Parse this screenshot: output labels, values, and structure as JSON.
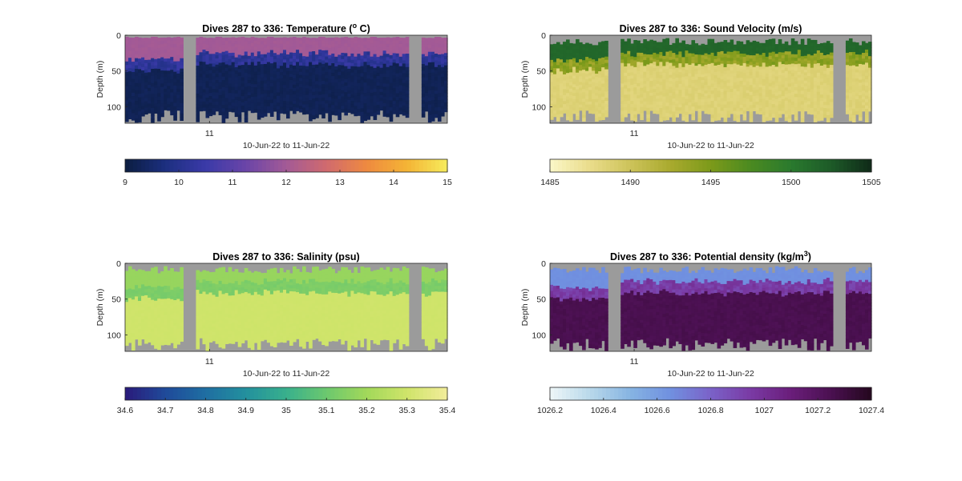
{
  "chart_data": [
    {
      "type": "heatmap",
      "title": "Dives 287 to 336: Temperature (",
      "title_sup": "o",
      "title_suffix": " C)",
      "ylabel": "Depth (m)",
      "xlabel": "10-Jun-22 to 11-Jun-22",
      "xtick_labels": [
        "11"
      ],
      "ytick_labels": [
        "0",
        "50",
        "100"
      ],
      "y_ticks": [
        0,
        50,
        100
      ],
      "ylim": [
        0,
        123
      ],
      "y_reversed": true,
      "colorbar": {
        "ticks": [
          9,
          10,
          11,
          12,
          13,
          14,
          15
        ],
        "tick_labels": [
          "9",
          "10",
          "11",
          "12",
          "13",
          "14",
          "15"
        ],
        "range": [
          9,
          15
        ],
        "colors": [
          "#0b1d40",
          "#1c2f80",
          "#3a3aa8",
          "#6a45a8",
          "#a35a96",
          "#d06a6e",
          "#ee8a40",
          "#f4b435",
          "#f6ec5c"
        ]
      },
      "background_color": "#9b9b9b",
      "gap_columns": [
        [
          0.18,
          0.215
        ],
        [
          0.885,
          0.92
        ]
      ],
      "profiles": {
        "surface_value": 12.0,
        "deep_value": 9.25,
        "mid_value": 10.2,
        "mixed_layer_depth_m": [
          28,
          35
        ],
        "bottom_depth_m": [
          104,
          122
        ]
      }
    },
    {
      "type": "heatmap",
      "title": "Dives 287 to 336: Sound Velocity (m/s)",
      "ylabel": "Depth (m)",
      "xlabel": "10-Jun-22 to 11-Jun-22",
      "xtick_labels": [
        "11"
      ],
      "ytick_labels": [
        "0",
        "50",
        "100"
      ],
      "y_ticks": [
        0,
        50,
        100
      ],
      "ylim": [
        0,
        123
      ],
      "y_reversed": true,
      "colorbar": {
        "ticks": [
          1485,
          1490,
          1495,
          1500,
          1505
        ],
        "tick_labels": [
          "1485",
          "1490",
          "1495",
          "1500",
          "1505"
        ],
        "range": [
          1485,
          1505
        ],
        "colors": [
          "#fbf7c8",
          "#e9dc8a",
          "#cdc35a",
          "#a9aa2e",
          "#7c9a1a",
          "#4b8a20",
          "#2a7a2e",
          "#1d5a28",
          "#0f2a18"
        ]
      },
      "background_color": "#9b9b9b",
      "gap_columns": [
        [
          0.18,
          0.215
        ],
        [
          0.885,
          0.92
        ]
      ],
      "profiles": {
        "surface_value": 1501.5,
        "deep_value": 1488.5,
        "mid_value": 1494,
        "mixed_layer_depth_m": [
          28,
          35
        ],
        "bottom_depth_m": [
          104,
          122
        ]
      }
    },
    {
      "type": "heatmap",
      "title": "Dives 287 to 336: Salinity (psu)",
      "ylabel": "Depth (m)",
      "xlabel": "10-Jun-22 to 11-Jun-22",
      "xtick_labels": [
        "11"
      ],
      "ytick_labels": [
        "0",
        "50",
        "100"
      ],
      "y_ticks": [
        0,
        50,
        100
      ],
      "ylim": [
        0,
        123
      ],
      "y_reversed": true,
      "colorbar": {
        "ticks": [
          34.6,
          34.7,
          34.8,
          34.9,
          35,
          35.1,
          35.2,
          35.3,
          35.4
        ],
        "tick_labels": [
          "34.6",
          "34.7",
          "34.8",
          "34.9",
          "35",
          "35.1",
          "35.2",
          "35.3",
          "35.4"
        ],
        "range": [
          34.6,
          35.4
        ],
        "colors": [
          "#2a1a7a",
          "#1f4a9a",
          "#1f6ea2",
          "#23909e",
          "#38b08c",
          "#6cc86e",
          "#a2d85a",
          "#cfe46a",
          "#f2ec9a"
        ]
      },
      "background_color": "#9b9b9b",
      "gap_columns": [
        [
          0.18,
          0.215
        ],
        [
          0.885,
          0.92
        ]
      ],
      "profiles": {
        "surface_value": 35.18,
        "deep_value": 35.3,
        "mid_value": 35.13,
        "mixed_layer_depth_m": [
          28,
          35
        ],
        "bottom_depth_m": [
          104,
          122
        ]
      }
    },
    {
      "type": "heatmap",
      "title": "Dives 287 to 336: Potential density (kg/m",
      "title_sup": "3",
      "title_suffix": ")",
      "ylabel": "Depth (m)",
      "xlabel": "10-Jun-22 to 11-Jun-22",
      "xtick_labels": [
        "11"
      ],
      "ytick_labels": [
        "0",
        "50",
        "100"
      ],
      "y_ticks": [
        0,
        50,
        100
      ],
      "ylim": [
        0,
        123
      ],
      "y_reversed": true,
      "colorbar": {
        "ticks": [
          1026.2,
          1026.4,
          1026.6,
          1026.8,
          1027,
          1027.2,
          1027.4
        ],
        "tick_labels": [
          "1026.2",
          "1026.4",
          "1026.6",
          "1026.8",
          "1027",
          "1027.2",
          "1027.4"
        ],
        "range": [
          1026.2,
          1027.4
        ],
        "colors": [
          "#eef6f8",
          "#b8d8ea",
          "#86b4e2",
          "#7090e0",
          "#7a62c8",
          "#7a3aa4",
          "#6a1e7a",
          "#4a1050",
          "#24081e"
        ]
      },
      "background_color": "#9b9b9b",
      "gap_columns": [
        [
          0.18,
          0.215
        ],
        [
          0.885,
          0.92
        ]
      ],
      "profiles": {
        "surface_value": 1026.65,
        "deep_value": 1027.25,
        "mid_value": 1026.95,
        "mixed_layer_depth_m": [
          28,
          35
        ],
        "bottom_depth_m": [
          104,
          122
        ]
      }
    }
  ]
}
